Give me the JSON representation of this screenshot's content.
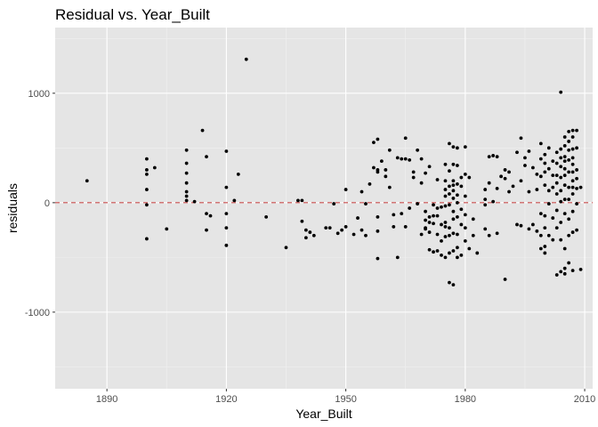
{
  "chart_data": {
    "type": "scatter",
    "title": "Residual vs. Year_Built",
    "xlabel": "Year_Built",
    "ylabel": "residuals",
    "xlim": [
      1877,
      2012
    ],
    "ylim": [
      -1700,
      1600
    ],
    "x_ticks": [
      1890,
      1920,
      1950,
      1980,
      2010
    ],
    "y_ticks": [
      -1000,
      0,
      1000
    ],
    "y_tick_labels": [
      "-1000",
      "0",
      "1000"
    ],
    "grid": true,
    "colors": {
      "panel_background": "#e5e5e5",
      "grid_major": "#ffffff",
      "grid_minor": "#f0f0f0",
      "points": "#000000",
      "reference_line": "#c74b4b",
      "tick_text": "#4d4d4d"
    },
    "reference_line": {
      "y": 0,
      "style": "dashed"
    },
    "points": [
      [
        1885,
        200
      ],
      [
        1900,
        400
      ],
      [
        1900,
        300
      ],
      [
        1900,
        260
      ],
      [
        1900,
        120
      ],
      [
        1900,
        -20
      ],
      [
        1900,
        -330
      ],
      [
        1902,
        320
      ],
      [
        1905,
        -240
      ],
      [
        1910,
        480
      ],
      [
        1910,
        360
      ],
      [
        1910,
        270
      ],
      [
        1910,
        180
      ],
      [
        1910,
        100
      ],
      [
        1910,
        60
      ],
      [
        1910,
        20
      ],
      [
        1912,
        10
      ],
      [
        1914,
        660
      ],
      [
        1915,
        420
      ],
      [
        1915,
        -100
      ],
      [
        1915,
        -250
      ],
      [
        1916,
        -120
      ],
      [
        1920,
        470
      ],
      [
        1920,
        140
      ],
      [
        1920,
        -100
      ],
      [
        1920,
        -230
      ],
      [
        1920,
        -390
      ],
      [
        1922,
        20
      ],
      [
        1923,
        260
      ],
      [
        1925,
        1310
      ],
      [
        1930,
        -130
      ],
      [
        1935,
        -410
      ],
      [
        1938,
        20
      ],
      [
        1939,
        20
      ],
      [
        1939,
        -170
      ],
      [
        1940,
        -250
      ],
      [
        1940,
        -320
      ],
      [
        1941,
        -270
      ],
      [
        1942,
        -300
      ],
      [
        1945,
        -230
      ],
      [
        1946,
        -230
      ],
      [
        1947,
        -10
      ],
      [
        1948,
        -280
      ],
      [
        1949,
        -250
      ],
      [
        1950,
        -220
      ],
      [
        1950,
        120
      ],
      [
        1952,
        -290
      ],
      [
        1953,
        -140
      ],
      [
        1954,
        100
      ],
      [
        1954,
        -250
      ],
      [
        1955,
        -10
      ],
      [
        1955,
        -300
      ],
      [
        1956,
        170
      ],
      [
        1957,
        550
      ],
      [
        1957,
        320
      ],
      [
        1958,
        580
      ],
      [
        1958,
        300
      ],
      [
        1958,
        280
      ],
      [
        1958,
        -130
      ],
      [
        1958,
        -260
      ],
      [
        1958,
        -510
      ],
      [
        1959,
        380
      ],
      [
        1960,
        300
      ],
      [
        1960,
        240
      ],
      [
        1961,
        480
      ],
      [
        1961,
        140
      ],
      [
        1962,
        -220
      ],
      [
        1962,
        -110
      ],
      [
        1963,
        410
      ],
      [
        1963,
        -500
      ],
      [
        1964,
        400
      ],
      [
        1964,
        -100
      ],
      [
        1965,
        590
      ],
      [
        1965,
        400
      ],
      [
        1965,
        -220
      ],
      [
        1966,
        390
      ],
      [
        1966,
        -50
      ],
      [
        1967,
        280
      ],
      [
        1967,
        230
      ],
      [
        1968,
        480
      ],
      [
        1968,
        -10
      ],
      [
        1969,
        400
      ],
      [
        1969,
        180
      ],
      [
        1969,
        -290
      ],
      [
        1970,
        270
      ],
      [
        1970,
        -80
      ],
      [
        1970,
        -160
      ],
      [
        1970,
        -230
      ],
      [
        1970,
        -240
      ],
      [
        1971,
        330
      ],
      [
        1971,
        -130
      ],
      [
        1971,
        -180
      ],
      [
        1971,
        -270
      ],
      [
        1971,
        -430
      ],
      [
        1972,
        -20
      ],
      [
        1972,
        -120
      ],
      [
        1972,
        -190
      ],
      [
        1972,
        -450
      ],
      [
        1973,
        210
      ],
      [
        1973,
        -50
      ],
      [
        1973,
        -120
      ],
      [
        1973,
        -290
      ],
      [
        1973,
        -440
      ],
      [
        1974,
        -40
      ],
      [
        1974,
        -200
      ],
      [
        1974,
        -350
      ],
      [
        1974,
        -480
      ],
      [
        1975,
        350
      ],
      [
        1975,
        200
      ],
      [
        1975,
        120
      ],
      [
        1975,
        60
      ],
      [
        1975,
        -30
      ],
      [
        1975,
        -180
      ],
      [
        1975,
        -220
      ],
      [
        1975,
        -310
      ],
      [
        1975,
        -500
      ],
      [
        1976,
        540
      ],
      [
        1976,
        290
      ],
      [
        1976,
        150
      ],
      [
        1976,
        80
      ],
      [
        1976,
        -20
      ],
      [
        1976,
        -230
      ],
      [
        1976,
        -300
      ],
      [
        1976,
        -460
      ],
      [
        1976,
        -730
      ],
      [
        1977,
        510
      ],
      [
        1977,
        350
      ],
      [
        1977,
        200
      ],
      [
        1977,
        160
      ],
      [
        1977,
        110
      ],
      [
        1977,
        40
      ],
      [
        1977,
        -80
      ],
      [
        1977,
        -150
      ],
      [
        1977,
        -280
      ],
      [
        1977,
        -440
      ],
      [
        1977,
        -750
      ],
      [
        1978,
        500
      ],
      [
        1978,
        340
      ],
      [
        1978,
        170
      ],
      [
        1978,
        70
      ],
      [
        1978,
        0
      ],
      [
        1978,
        -130
      ],
      [
        1978,
        -290
      ],
      [
        1978,
        -410
      ],
      [
        1978,
        -500
      ],
      [
        1979,
        230
      ],
      [
        1979,
        150
      ],
      [
        1979,
        -60
      ],
      [
        1979,
        -200
      ],
      [
        1979,
        -480
      ],
      [
        1980,
        510
      ],
      [
        1980,
        260
      ],
      [
        1980,
        60
      ],
      [
        1980,
        -110
      ],
      [
        1980,
        -230
      ],
      [
        1980,
        -350
      ],
      [
        1981,
        230
      ],
      [
        1981,
        -420
      ],
      [
        1982,
        -150
      ],
      [
        1982,
        -300
      ],
      [
        1983,
        -460
      ],
      [
        1985,
        120
      ],
      [
        1985,
        30
      ],
      [
        1985,
        -20
      ],
      [
        1985,
        -240
      ],
      [
        1986,
        420
      ],
      [
        1986,
        180
      ],
      [
        1986,
        -300
      ],
      [
        1987,
        430
      ],
      [
        1987,
        10
      ],
      [
        1988,
        420
      ],
      [
        1988,
        130
      ],
      [
        1988,
        -280
      ],
      [
        1989,
        240
      ],
      [
        1990,
        300
      ],
      [
        1990,
        220
      ],
      [
        1990,
        -700
      ],
      [
        1991,
        280
      ],
      [
        1991,
        100
      ],
      [
        1992,
        150
      ],
      [
        1993,
        460
      ],
      [
        1993,
        -200
      ],
      [
        1994,
        590
      ],
      [
        1994,
        200
      ],
      [
        1994,
        -210
      ],
      [
        1995,
        410
      ],
      [
        1995,
        340
      ],
      [
        1996,
        470
      ],
      [
        1996,
        100
      ],
      [
        1996,
        -240
      ],
      [
        1997,
        320
      ],
      [
        1997,
        -200
      ],
      [
        1998,
        260
      ],
      [
        1998,
        120
      ],
      [
        1998,
        -260
      ],
      [
        1999,
        540
      ],
      [
        1999,
        400
      ],
      [
        1999,
        240
      ],
      [
        1999,
        -100
      ],
      [
        1999,
        -300
      ],
      [
        1999,
        -420
      ],
      [
        2000,
        440
      ],
      [
        2000,
        360
      ],
      [
        2000,
        280
      ],
      [
        2000,
        160
      ],
      [
        2000,
        -120
      ],
      [
        2000,
        -230
      ],
      [
        2000,
        -400
      ],
      [
        2000,
        -460
      ],
      [
        2001,
        500
      ],
      [
        2001,
        310
      ],
      [
        2001,
        110
      ],
      [
        2001,
        -10
      ],
      [
        2001,
        -300
      ],
      [
        2002,
        380
      ],
      [
        2002,
        250
      ],
      [
        2002,
        140
      ],
      [
        2002,
        -140
      ],
      [
        2002,
        -340
      ],
      [
        2003,
        460
      ],
      [
        2003,
        360
      ],
      [
        2003,
        250
      ],
      [
        2003,
        180
      ],
      [
        2003,
        80
      ],
      [
        2003,
        -70
      ],
      [
        2003,
        -230
      ],
      [
        2003,
        -660
      ],
      [
        2004,
        1010
      ],
      [
        2004,
        490
      ],
      [
        2004,
        410
      ],
      [
        2004,
        330
      ],
      [
        2004,
        230
      ],
      [
        2004,
        110
      ],
      [
        2004,
        10
      ],
      [
        2004,
        -180
      ],
      [
        2004,
        -340
      ],
      [
        2004,
        -630
      ],
      [
        2005,
        600
      ],
      [
        2005,
        520
      ],
      [
        2005,
        420
      ],
      [
        2005,
        380
      ],
      [
        2005,
        310
      ],
      [
        2005,
        250
      ],
      [
        2005,
        160
      ],
      [
        2005,
        30
      ],
      [
        2005,
        -100
      ],
      [
        2005,
        -420
      ],
      [
        2005,
        -600
      ],
      [
        2005,
        -650
      ],
      [
        2006,
        650
      ],
      [
        2006,
        560
      ],
      [
        2006,
        480
      ],
      [
        2006,
        390
      ],
      [
        2006,
        280
      ],
      [
        2006,
        140
      ],
      [
        2006,
        30
      ],
      [
        2006,
        -150
      ],
      [
        2006,
        -300
      ],
      [
        2006,
        -550
      ],
      [
        2007,
        660
      ],
      [
        2007,
        600
      ],
      [
        2007,
        490
      ],
      [
        2007,
        410
      ],
      [
        2007,
        350
      ],
      [
        2007,
        280
      ],
      [
        2007,
        200
      ],
      [
        2007,
        140
      ],
      [
        2007,
        80
      ],
      [
        2007,
        -80
      ],
      [
        2007,
        -270
      ],
      [
        2007,
        -620
      ],
      [
        2008,
        660
      ],
      [
        2008,
        500
      ],
      [
        2008,
        300
      ],
      [
        2008,
        220
      ],
      [
        2008,
        130
      ],
      [
        2008,
        -10
      ],
      [
        2008,
        -250
      ],
      [
        2009,
        140
      ],
      [
        2009,
        -610
      ]
    ]
  }
}
